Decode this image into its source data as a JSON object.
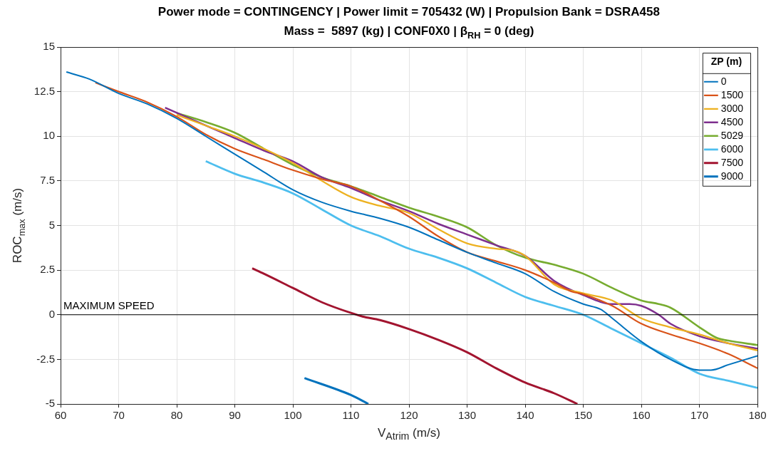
{
  "chart_data": {
    "type": "line",
    "title": "Power mode = CONTINGENCY | Power limit = 705432 (W) | Propulsion Bank = DSRA458",
    "subtitle": "Mass =  5897 (kg) | CONF0X0 | β$_{RH}$ = 0 (deg)",
    "xlabel": "V$_{A}$$_{trim}$ (m/s)",
    "ylabel": "ROC$_{max}$ (m/s)",
    "legend_title": "ZP (m)",
    "legend": "top right",
    "grid": true,
    "line_style": "solid",
    "marker": "none",
    "xlim": [
      60,
      180
    ],
    "xticks": [
      60,
      70,
      80,
      90,
      100,
      110,
      120,
      130,
      140,
      150,
      160,
      170,
      180
    ],
    "ylim": [
      -5,
      15
    ],
    "yticks": [
      -5,
      -2.5,
      0,
      2.5,
      5,
      7.5,
      10,
      12.5,
      15
    ],
    "ref_lines": [
      {
        "axis": "y",
        "value": 0,
        "label": "MAXIMUM SPEED",
        "color": "#000000"
      }
    ],
    "series": [
      {
        "name": "0",
        "color": "#0072bd",
        "x": [
          61,
          65,
          70,
          75,
          80,
          85,
          90,
          95,
          100,
          105,
          110,
          115,
          120,
          125,
          130,
          135,
          140,
          145,
          150,
          153,
          155,
          160,
          165,
          170,
          172,
          175,
          180
        ],
        "values": [
          13.6,
          13.2,
          12.4,
          11.8,
          11.0,
          10.0,
          9.0,
          8.0,
          7.0,
          6.3,
          5.8,
          5.4,
          4.9,
          4.2,
          3.5,
          2.9,
          2.3,
          1.3,
          0.6,
          0.3,
          -0.2,
          -1.5,
          -2.5,
          -3.1,
          -3.1,
          -2.8,
          -2.3
        ]
      },
      {
        "name": "1500",
        "color": "#d95319",
        "x": [
          66,
          70,
          75,
          80,
          85,
          90,
          95,
          100,
          105,
          110,
          115,
          120,
          125,
          130,
          135,
          140,
          145,
          148,
          150,
          155,
          160,
          165,
          170,
          175,
          180
        ],
        "values": [
          13.0,
          12.5,
          11.9,
          11.1,
          10.1,
          9.3,
          8.7,
          8.1,
          7.6,
          7.2,
          6.4,
          5.5,
          4.4,
          3.5,
          3.0,
          2.5,
          1.8,
          1.3,
          1.15,
          0.5,
          -0.5,
          -1.1,
          -1.6,
          -2.2,
          -3.0
        ]
      },
      {
        "name": "3000",
        "color": "#edb120",
        "x": [
          80,
          85,
          90,
          95,
          100,
          105,
          110,
          115,
          120,
          125,
          130,
          135,
          138,
          140,
          145,
          150,
          155,
          160,
          165,
          170,
          175,
          180
        ],
        "values": [
          11.2,
          10.6,
          10.0,
          9.3,
          8.5,
          7.5,
          6.6,
          6.1,
          5.7,
          4.8,
          4.0,
          3.7,
          3.6,
          3.3,
          1.7,
          1.2,
          0.8,
          -0.2,
          -0.7,
          -1.1,
          -1.6,
          -2.0
        ]
      },
      {
        "name": "4500",
        "color": "#7e2f8e",
        "x": [
          78,
          85,
          90,
          95,
          100,
          105,
          110,
          115,
          120,
          125,
          130,
          135,
          140,
          145,
          150,
          155,
          158,
          160,
          163,
          165,
          170,
          175,
          180
        ],
        "values": [
          11.6,
          10.6,
          9.9,
          9.2,
          8.6,
          7.7,
          7.1,
          6.4,
          5.8,
          5.1,
          4.5,
          3.9,
          3.3,
          1.9,
          1.1,
          0.6,
          0.6,
          0.5,
          0.0,
          -0.5,
          -1.2,
          -1.6,
          -1.9
        ]
      },
      {
        "name": "5029",
        "color": "#77ac30",
        "x": [
          80,
          85,
          90,
          95,
          100,
          105,
          110,
          115,
          120,
          125,
          130,
          135,
          140,
          145,
          150,
          155,
          160,
          163,
          165,
          170,
          173,
          175,
          180
        ],
        "values": [
          11.3,
          10.8,
          10.2,
          9.3,
          8.4,
          7.7,
          7.2,
          6.6,
          6.0,
          5.5,
          4.9,
          3.9,
          3.2,
          2.8,
          2.3,
          1.5,
          0.8,
          0.6,
          0.4,
          -0.7,
          -1.3,
          -1.45,
          -1.7
        ]
      },
      {
        "name": "6000",
        "color": "#4dbeee",
        "x": [
          85,
          90,
          95,
          100,
          105,
          110,
          115,
          120,
          125,
          130,
          135,
          140,
          145,
          150,
          155,
          160,
          165,
          170,
          175,
          180
        ],
        "values": [
          8.6,
          7.9,
          7.4,
          6.8,
          5.9,
          5.0,
          4.4,
          3.7,
          3.2,
          2.6,
          1.8,
          1.0,
          0.5,
          0.0,
          -0.8,
          -1.6,
          -2.4,
          -3.3,
          -3.7,
          -4.1
        ]
      },
      {
        "name": "7500",
        "color": "#a2142f",
        "x": [
          93,
          95,
          100,
          105,
          110,
          112,
          115,
          120,
          125,
          130,
          135,
          140,
          145,
          149
        ],
        "values": [
          2.6,
          2.3,
          1.5,
          0.7,
          0.1,
          -0.1,
          -0.3,
          -0.8,
          -1.4,
          -2.1,
          -3.0,
          -3.8,
          -4.4,
          -5.0
        ]
      },
      {
        "name": "9000",
        "color": "#0072bd",
        "x": [
          102,
          110,
          113
        ],
        "values": [
          -3.55,
          -4.5,
          -5.0
        ]
      }
    ]
  }
}
